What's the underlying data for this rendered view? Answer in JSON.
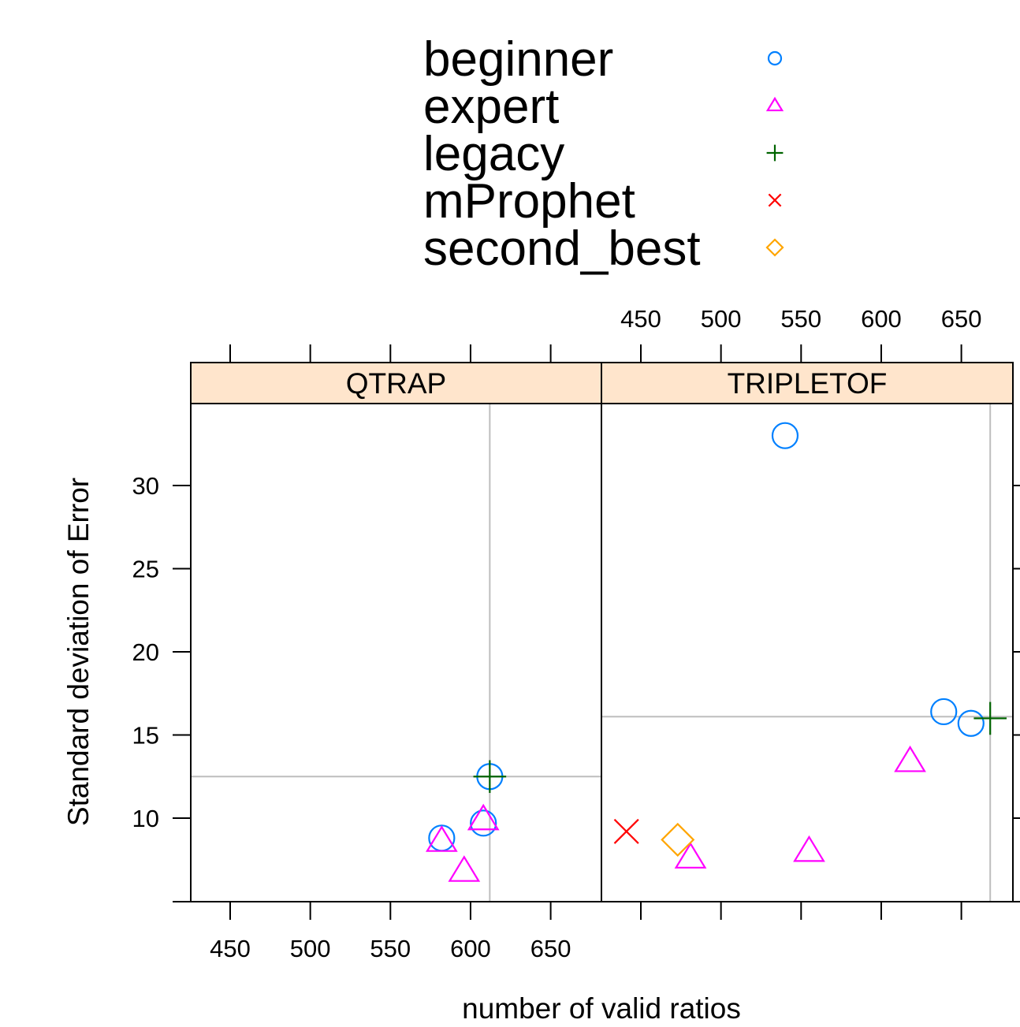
{
  "chart_data": {
    "type": "scatter",
    "xlabel": "number of valid ratios",
    "ylabel": "Standard deviation of Error",
    "xlim": [
      425,
      682
    ],
    "ylim": [
      5,
      35
    ],
    "x_ticks": [
      450,
      500,
      550,
      600,
      650
    ],
    "y_ticks": [
      10,
      15,
      20,
      25,
      30
    ],
    "legend": {
      "placement": "top",
      "items": [
        {
          "name": "beginner",
          "symbol": "circle",
          "color": "#0080ff"
        },
        {
          "name": "expert",
          "symbol": "triangle",
          "color": "#ff00ff"
        },
        {
          "name": "legacy",
          "symbol": "plus",
          "color": "#006400"
        },
        {
          "name": "mProphet",
          "symbol": "cross",
          "color": "#ff0000"
        },
        {
          "name": "second_best",
          "symbol": "diamond",
          "color": "#ffa500"
        }
      ]
    },
    "reference_line_color": "#bebebe",
    "strip_color": "#ffe5cc",
    "panels": [
      {
        "name": "QTRAP",
        "reference": {
          "x": 612,
          "y": 12.5
        },
        "points": [
          {
            "series": "beginner",
            "x": 582,
            "y": 8.8
          },
          {
            "series": "beginner",
            "x": 608,
            "y": 9.7
          },
          {
            "series": "beginner",
            "x": 612,
            "y": 12.5
          },
          {
            "series": "expert",
            "x": 582,
            "y": 8.6
          },
          {
            "series": "expert",
            "x": 596,
            "y": 6.8
          },
          {
            "series": "expert",
            "x": 608,
            "y": 9.9
          },
          {
            "series": "legacy",
            "x": 612,
            "y": 12.5
          }
        ]
      },
      {
        "name": "TRIPLETOF",
        "reference": {
          "x": 668,
          "y": 16.1
        },
        "points": [
          {
            "series": "beginner",
            "x": 540,
            "y": 33.0
          },
          {
            "series": "beginner",
            "x": 639,
            "y": 16.4
          },
          {
            "series": "beginner",
            "x": 656,
            "y": 15.7
          },
          {
            "series": "expert",
            "x": 481,
            "y": 7.6
          },
          {
            "series": "expert",
            "x": 555,
            "y": 8.0
          },
          {
            "series": "expert",
            "x": 618,
            "y": 13.4
          },
          {
            "series": "legacy",
            "x": 668,
            "y": 16.0
          },
          {
            "series": "mProphet",
            "x": 441,
            "y": 9.2
          },
          {
            "series": "second_best",
            "x": 473,
            "y": 8.7
          }
        ]
      }
    ]
  }
}
